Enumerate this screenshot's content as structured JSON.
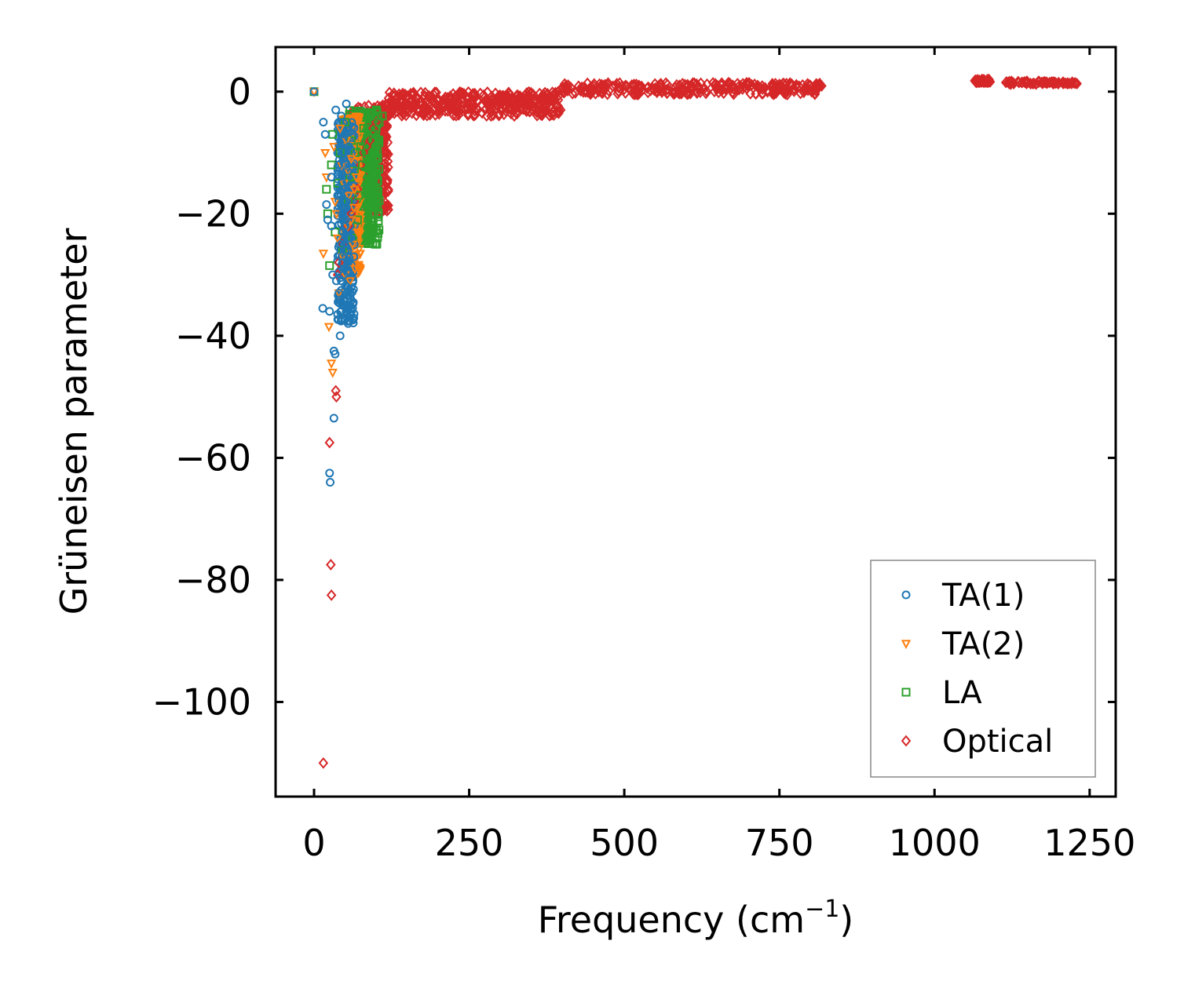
{
  "chart_data": {
    "type": "scatter",
    "xlabel": "Frequency (cm",
    "xlabel_superscript": "−1",
    "xlabel_suffix": ")",
    "ylabel": "Grüneisen parameter",
    "xlim": [
      -62,
      1292
    ],
    "ylim": [
      -115.5,
      7.3
    ],
    "xticks": [
      0,
      250,
      500,
      750,
      1000,
      1250
    ],
    "xtick_labels": [
      "0",
      "250",
      "500",
      "750",
      "1000",
      "1250"
    ],
    "yticks": [
      0,
      -20,
      -40,
      -60,
      -80,
      -100
    ],
    "ytick_labels": [
      "0",
      "−20",
      "−40",
      "−60",
      "−80",
      "−100"
    ],
    "legend_position": "bottom-right",
    "series": [
      {
        "name": "TA(1)",
        "marker": "circle",
        "color": "#1f77b4",
        "x": [
          0,
          14,
          15,
          18,
          20,
          22,
          25,
          25,
          26,
          28,
          28,
          30,
          32,
          32,
          34,
          35,
          36,
          38,
          38,
          40,
          40,
          42,
          42,
          44,
          44,
          45,
          46,
          46,
          48,
          48,
          50,
          50,
          52,
          52,
          54,
          55,
          56,
          58,
          60,
          45,
          48,
          52,
          47,
          50,
          53,
          46,
          49,
          51,
          44,
          47
        ],
        "y": [
          0,
          -35.5,
          -5,
          -7,
          -18.5,
          -21,
          -36,
          -62.5,
          -64,
          -14,
          -22,
          -30,
          -42.5,
          -53.5,
          -43,
          -3,
          -31,
          -17,
          -36.5,
          -12,
          -33,
          -9,
          -40,
          -4,
          -25,
          -15,
          -28,
          -20,
          -11,
          -34,
          -7,
          -22,
          -2,
          -18,
          -13,
          -38,
          -9,
          -24,
          -36,
          -27,
          -30,
          -19,
          -23,
          -26,
          -32,
          -16,
          -29,
          -21,
          -31,
          -35
        ]
      },
      {
        "name": "TA(2)",
        "marker": "triangle-down",
        "color": "#ff7f0e",
        "x": [
          0,
          15,
          18,
          20,
          24,
          28,
          30,
          32,
          34,
          36,
          38,
          40,
          42,
          44,
          46,
          48,
          50,
          52,
          54,
          56,
          58,
          60,
          62,
          64,
          66,
          68,
          70,
          55,
          60,
          65
        ],
        "y": [
          0,
          -26.5,
          -10,
          -14,
          -38.5,
          -44.5,
          -46,
          -9,
          -18,
          -20,
          -24,
          -33,
          -6,
          -12,
          -27,
          -15,
          -30,
          -8,
          -22,
          -17,
          -31,
          -11,
          -25,
          -19,
          -29,
          -14,
          -23,
          -13,
          -21,
          -16
        ]
      },
      {
        "name": "LA",
        "marker": "square",
        "color": "#2ca02c",
        "x": [
          0,
          20,
          22,
          25,
          28,
          30,
          34,
          38,
          42,
          46,
          50,
          55,
          60,
          65,
          70,
          75,
          80,
          85,
          90,
          95,
          100,
          105,
          110,
          58,
          62,
          66,
          72,
          78
        ],
        "y": [
          0,
          -16,
          -20,
          -28.5,
          -12,
          -7,
          -23,
          -15,
          -10,
          -26,
          -5,
          -18,
          -8,
          -13,
          -21,
          -9,
          -6,
          -11,
          -4,
          -7,
          -3,
          -5,
          -4,
          -14,
          -24,
          -10,
          -17,
          -12
        ]
      },
      {
        "name": "Optical",
        "marker": "diamond",
        "color": "#d62728",
        "x": [
          15,
          25,
          27,
          28,
          35,
          36,
          38,
          40,
          45,
          55,
          60,
          65,
          70,
          75,
          80,
          85,
          90,
          95,
          100,
          110,
          120,
          140,
          160,
          180,
          200,
          250,
          300,
          350,
          400,
          450,
          465,
          500,
          550,
          600,
          650,
          700,
          750,
          800,
          815,
          1065,
          1085,
          1115,
          1150,
          1200,
          1225
        ],
        "y": [
          -110,
          -57.5,
          -77.5,
          -82.5,
          -49,
          -50,
          -30,
          -28,
          -25,
          -22,
          -20,
          -18,
          -16,
          -12,
          -10,
          -9,
          -8,
          -6,
          -5,
          -4,
          -3,
          -2.5,
          -2,
          -1.7,
          -1.5,
          -1,
          -0.6,
          -0.3,
          0,
          0.3,
          0.8,
          0.4,
          0.6,
          0.8,
          1.0,
          1.1,
          1.2,
          1.0,
          0.9,
          1.8,
          1.8,
          1.5,
          1.5,
          1.5,
          1.4
        ]
      }
    ],
    "dense_bands": [
      {
        "series": "TA(1)",
        "x_range": [
          38,
          65
        ],
        "y_range": [
          -38,
          -5
        ]
      },
      {
        "series": "TA(2)",
        "x_range": [
          45,
          75
        ],
        "y_range": [
          -30,
          -4
        ]
      },
      {
        "series": "LA",
        "x_range": [
          50,
          105
        ],
        "y_range": [
          -25,
          -3
        ]
      },
      {
        "series": "Optical",
        "x_range": [
          60,
          120
        ],
        "y_range": [
          -20,
          -2
        ]
      },
      {
        "series": "Optical",
        "x_range": [
          120,
          400
        ],
        "y_range": [
          -4,
          0
        ]
      },
      {
        "series": "Optical",
        "x_range": [
          400,
          820
        ],
        "y_range": [
          -0.5,
          1.5
        ]
      },
      {
        "series": "Optical",
        "x_range": [
          1065,
          1090
        ],
        "y_range": [
          1.5,
          2.0
        ]
      },
      {
        "series": "Optical",
        "x_range": [
          1115,
          1230
        ],
        "y_range": [
          1.2,
          1.7
        ]
      }
    ]
  }
}
